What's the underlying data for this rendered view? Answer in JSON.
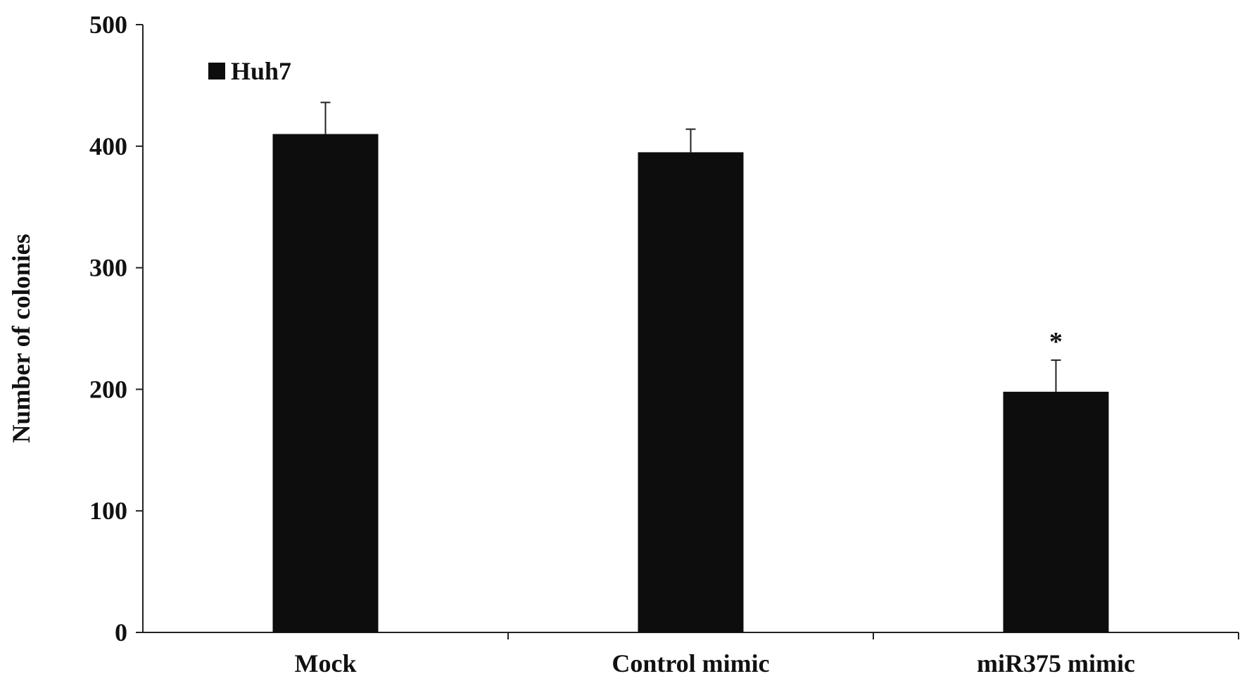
{
  "chart_data": {
    "type": "bar",
    "categories": [
      "Mock",
      "Control mimic",
      "miR375 mimic"
    ],
    "series": [
      {
        "name": "Huh7",
        "values": [
          410,
          395,
          198
        ],
        "errors": [
          26,
          19,
          26
        ],
        "color": "#0d0d0d"
      }
    ],
    "annotations": [
      "",
      "",
      "*"
    ],
    "ylabel": "Number of colonies",
    "xlabel": "",
    "ylim": [
      0,
      500
    ],
    "yticks": [
      0,
      100,
      200,
      300,
      400,
      500
    ],
    "grid": false,
    "legend_position": "top-left"
  }
}
